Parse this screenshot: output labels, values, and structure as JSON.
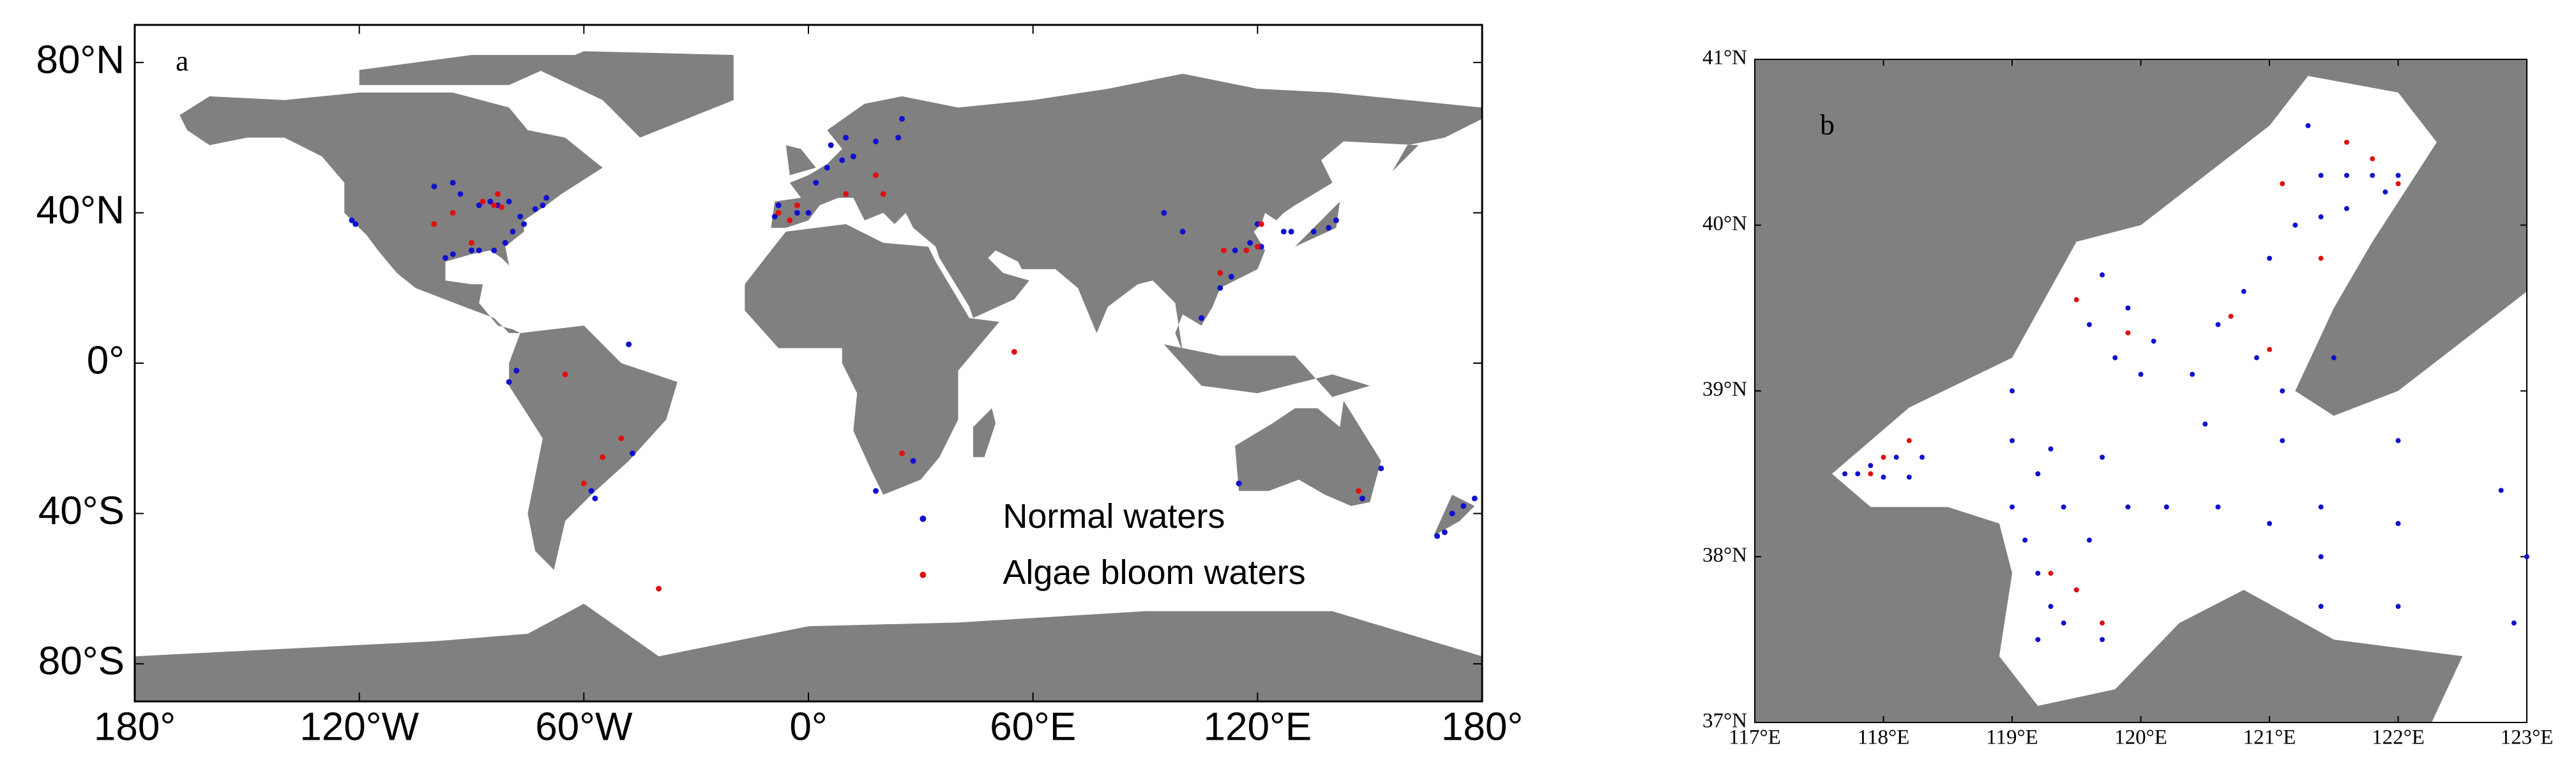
{
  "chart_data": [
    {
      "type": "scatter",
      "label": "a",
      "xlim": [
        -180,
        180
      ],
      "ylim": [
        -90,
        90
      ],
      "xticks": [
        {
          "value": -180,
          "label": "180°"
        },
        {
          "value": -120,
          "label": "120°W"
        },
        {
          "value": -60,
          "label": "60°W"
        },
        {
          "value": 0,
          "label": "0°"
        },
        {
          "value": 60,
          "label": "60°E"
        },
        {
          "value": 120,
          "label": "120°E"
        },
        {
          "value": 180,
          "label": "180°"
        }
      ],
      "yticks": [
        {
          "value": 80,
          "label": "80°N"
        },
        {
          "value": 40,
          "label": "40°N"
        },
        {
          "value": 0,
          "label": "0°"
        },
        {
          "value": -40,
          "label": "40°S"
        },
        {
          "value": -80,
          "label": "80°S"
        }
      ],
      "legend": "lower right",
      "series": [
        {
          "name": "Normal waters",
          "color": "#1010d0",
          "x": [
            -88,
            -85,
            -83,
            -80,
            -77,
            -76,
            -79,
            -81,
            -84,
            -88,
            -90,
            -95,
            -97,
            -93,
            -95,
            -100,
            -122,
            -121,
            -71,
            -73,
            -70,
            -9,
            -8,
            -3,
            0,
            2,
            5,
            9,
            12,
            18,
            24,
            25,
            10,
            6,
            120,
            121,
            118,
            114,
            113,
            110,
            105,
            127,
            129,
            135,
            139,
            141,
            100,
            95,
            -58,
            -57,
            -47,
            -80,
            -78,
            -48,
            28,
            18,
            148,
            153,
            115,
            172,
            175,
            170,
            168,
            178
          ],
          "values": [
            42,
            43,
            42,
            43,
            39,
            37,
            35,
            32,
            30,
            30,
            30,
            29,
            28,
            45,
            48,
            47,
            38,
            37,
            42,
            41,
            44,
            39,
            42,
            40,
            40,
            48,
            52,
            54,
            55,
            59,
            60,
            65,
            60,
            58,
            37,
            31,
            32,
            30,
            23,
            20,
            12,
            35,
            35,
            35,
            36,
            38,
            35,
            40,
            -34,
            -36,
            -24,
            -5,
            -2,
            5,
            -26,
            -34,
            -36,
            -28,
            -32,
            -40,
            -38,
            -45,
            -46,
            -36
          ]
        },
        {
          "name": "Algae bloom waters",
          "color": "#e01010",
          "x": [
            -84,
            -82,
            -87,
            -83,
            -95,
            -100,
            -90,
            -5,
            -8,
            -3,
            10,
            20,
            18,
            120,
            121,
            117,
            110,
            111,
            147,
            -60,
            -55,
            -50,
            -40,
            55,
            25,
            -65
          ],
          "values": [
            42,
            41.5,
            43,
            45,
            40,
            37,
            32,
            38,
            40,
            42,
            45,
            45,
            50,
            31,
            37,
            30,
            24,
            30,
            -34,
            -32,
            -25,
            -20,
            -60,
            3,
            -24,
            -3
          ]
        }
      ]
    },
    {
      "type": "scatter",
      "label": "b",
      "xlim": [
        117,
        123
      ],
      "ylim": [
        37,
        41
      ],
      "xticks": [
        {
          "value": 117,
          "label": "117°E"
        },
        {
          "value": 118,
          "label": "118°E"
        },
        {
          "value": 119,
          "label": "119°E"
        },
        {
          "value": 120,
          "label": "120°E"
        },
        {
          "value": 121,
          "label": "121°E"
        },
        {
          "value": 122,
          "label": "122°E"
        },
        {
          "value": 123,
          "label": "123°E"
        }
      ],
      "yticks": [
        {
          "value": 37,
          "label": "37°N"
        },
        {
          "value": 38,
          "label": "38°N"
        },
        {
          "value": 39,
          "label": "39°N"
        },
        {
          "value": 40,
          "label": "40°N"
        },
        {
          "value": 41,
          "label": "41°N"
        }
      ],
      "series": [
        {
          "color": "#1010d0",
          "x": [
            117.7,
            117.9,
            118.1,
            118.3,
            117.8,
            118.0,
            118.2,
            119.0,
            119.0,
            119.0,
            119.1,
            119.2,
            119.3,
            119.2,
            119.4,
            119.5,
            119.7,
            119.6,
            119.4,
            119.2,
            119.3,
            119.7,
            119.9,
            120.2,
            120.6,
            121.0,
            121.4,
            121.4,
            121.4,
            122.0,
            122.0,
            122.0,
            122.8,
            123.0,
            122.9,
            119.6,
            119.8,
            120.0,
            119.7,
            119.9,
            120.1,
            120.4,
            120.6,
            120.8,
            121.0,
            121.2,
            121.4,
            121.6,
            121.8,
            122.0,
            121.4,
            121.6,
            121.9,
            121.3,
            120.9,
            121.1,
            120.5,
            121.1,
            121.5
          ],
          "values": [
            38.5,
            38.55,
            38.6,
            38.6,
            38.5,
            38.48,
            38.48,
            39.0,
            38.7,
            38.3,
            38.1,
            37.9,
            37.7,
            37.5,
            37.6,
            37.8,
            37.5,
            38.1,
            38.3,
            38.5,
            38.65,
            38.6,
            38.3,
            38.3,
            38.3,
            38.2,
            38.3,
            38.0,
            37.7,
            38.7,
            38.2,
            37.7,
            38.4,
            38.0,
            37.6,
            39.4,
            39.2,
            39.1,
            39.7,
            39.5,
            39.3,
            39.1,
            39.4,
            39.6,
            39.8,
            40.0,
            40.3,
            40.3,
            40.3,
            40.3,
            40.05,
            40.1,
            40.2,
            40.6,
            39.2,
            39.0,
            38.8,
            38.7,
            39.2
          ]
        },
        {
          "color": "#e01010",
          "x": [
            118.0,
            118.2,
            119.5,
            119.9,
            121.0,
            121.4,
            121.6,
            121.8,
            122.0,
            121.1,
            119.7,
            119.3,
            120.7,
            119.5,
            117.9
          ],
          "values": [
            38.6,
            38.7,
            39.55,
            39.35,
            39.25,
            39.8,
            40.5,
            40.4,
            40.25,
            40.25,
            37.6,
            37.9,
            39.45,
            37.8,
            38.5
          ]
        }
      ]
    }
  ]
}
